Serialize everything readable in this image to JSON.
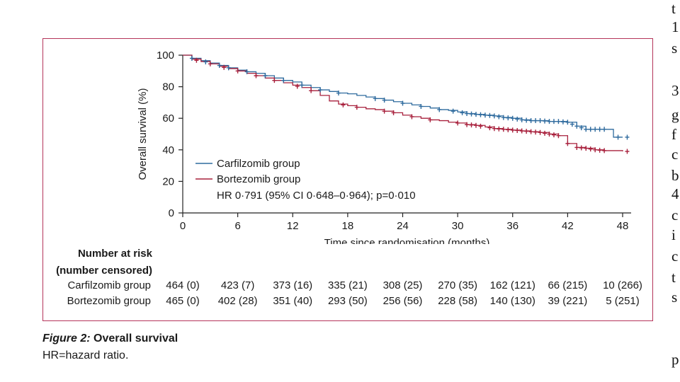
{
  "chart_data": {
    "type": "line",
    "xlabel": "Time since randomisation (months)",
    "ylabel": "Overall survival (%)",
    "xlim": [
      0,
      48
    ],
    "ylim": [
      0,
      100
    ],
    "xticks": [
      "0",
      "6",
      "12",
      "18",
      "24",
      "30",
      "36",
      "42",
      "48"
    ],
    "yticks": [
      "0",
      "20",
      "40",
      "60",
      "80",
      "100"
    ],
    "grid": false,
    "legend_position": "bottom-left",
    "annotation": "HR 0·791 (95% CI 0·648–0·964); p=0·010",
    "series": [
      {
        "name": "Carfilzomib group",
        "color": "#2f6b9e",
        "x": [
          0,
          1,
          2,
          3,
          4,
          5,
          6,
          7,
          8,
          9,
          10,
          11,
          12,
          13,
          14,
          15,
          16,
          17,
          18,
          19,
          20,
          21,
          22,
          23,
          24,
          25,
          26,
          27,
          28,
          29,
          30,
          31,
          32,
          33,
          34,
          35,
          36,
          37,
          38,
          39,
          40,
          41,
          42,
          43,
          44,
          45,
          46,
          47,
          48
        ],
        "y": [
          100,
          98,
          96.5,
          95,
          93.5,
          92,
          90.5,
          89.5,
          88.5,
          87,
          85.5,
          84,
          83,
          81,
          79.5,
          78,
          77,
          76,
          75.5,
          74.5,
          73.5,
          72.5,
          71.5,
          70.5,
          69.5,
          68.5,
          67.5,
          66.5,
          65.5,
          65,
          64,
          63,
          62.5,
          62,
          61.5,
          60.5,
          60,
          59,
          58.5,
          58.5,
          58,
          58,
          57.5,
          55,
          53,
          53,
          53,
          48,
          48
        ]
      },
      {
        "name": "Bortezomib group",
        "color": "#a8203c",
        "x": [
          0,
          1,
          2,
          3,
          4,
          5,
          6,
          7,
          8,
          9,
          10,
          11,
          12,
          13,
          14,
          15,
          16,
          17,
          18,
          19,
          20,
          21,
          22,
          23,
          24,
          25,
          26,
          27,
          28,
          29,
          30,
          31,
          32,
          33,
          34,
          35,
          36,
          37,
          38,
          39,
          40,
          41,
          42,
          43,
          44,
          45,
          46,
          47,
          48
        ],
        "y": [
          100,
          97.5,
          96,
          94.5,
          93,
          91.5,
          90,
          88.5,
          87,
          85.5,
          84,
          82.5,
          81,
          79.5,
          77.5,
          74.5,
          71,
          69,
          68,
          67,
          66,
          65.5,
          64.5,
          63.5,
          62,
          61,
          60,
          59,
          58.5,
          57.5,
          57,
          56,
          55.5,
          54.5,
          53.5,
          53,
          52.5,
          52,
          51.5,
          51,
          50,
          49,
          44,
          41.5,
          41,
          40,
          39.5,
          39.5,
          39
        ]
      }
    ],
    "censor_marks": [
      {
        "series": "Carfilzomib group",
        "x": [
          1,
          2.5,
          4,
          5,
          7,
          9,
          11,
          13,
          15,
          17,
          21,
          22,
          24,
          26,
          28,
          29.5,
          30.5,
          31,
          31.5,
          32,
          32.5,
          33,
          33.5,
          34,
          34.5,
          35,
          35.5,
          36,
          36.5,
          37,
          37.5,
          38,
          38.5,
          39,
          39.5,
          40,
          40.5,
          41,
          41.5,
          42,
          42.5,
          43,
          43.5,
          44,
          44.5,
          45,
          45.5,
          46,
          47.5,
          48.5
        ]
      },
      {
        "series": "Bortezomib group",
        "x": [
          1.5,
          3,
          4.5,
          6,
          8,
          10,
          12.5,
          14,
          17.5,
          19,
          22,
          23,
          25,
          27,
          30,
          31,
          31.5,
          32,
          32.5,
          33.5,
          34,
          34.5,
          35,
          35.5,
          36,
          36.5,
          37,
          37.5,
          38,
          38.5,
          39,
          39.5,
          40,
          40.5,
          41,
          42,
          43,
          43.5,
          44,
          44.5,
          45,
          45.5,
          46,
          48.5
        ]
      }
    ]
  },
  "risk_table": {
    "header_line1": "Number at risk",
    "header_line2": "(number censored)",
    "rows": [
      {
        "label": "Carfilzomib group",
        "values": [
          "464 (0)",
          "423 (7)",
          "373 (16)",
          "335 (21)",
          "308 (25)",
          "270 (35)",
          "162 (121)",
          "66 (215)",
          "10 (266)"
        ]
      },
      {
        "label": "Bortezomib group",
        "values": [
          "465 (0)",
          "402 (28)",
          "351 (40)",
          "293 (50)",
          "256 (56)",
          "228 (58)",
          "140 (130)",
          "39 (221)",
          "5 (251)"
        ]
      }
    ]
  },
  "caption": {
    "figure_label": "Figure 2:",
    "figure_title": "Overall survival",
    "note": "HR=hazard ratio."
  },
  "side_text": [
    "t",
    "1",
    "s",
    "3",
    "g",
    "f",
    "c",
    "b",
    "4",
    "c",
    "i",
    "c",
    "t",
    "s",
    "p"
  ]
}
